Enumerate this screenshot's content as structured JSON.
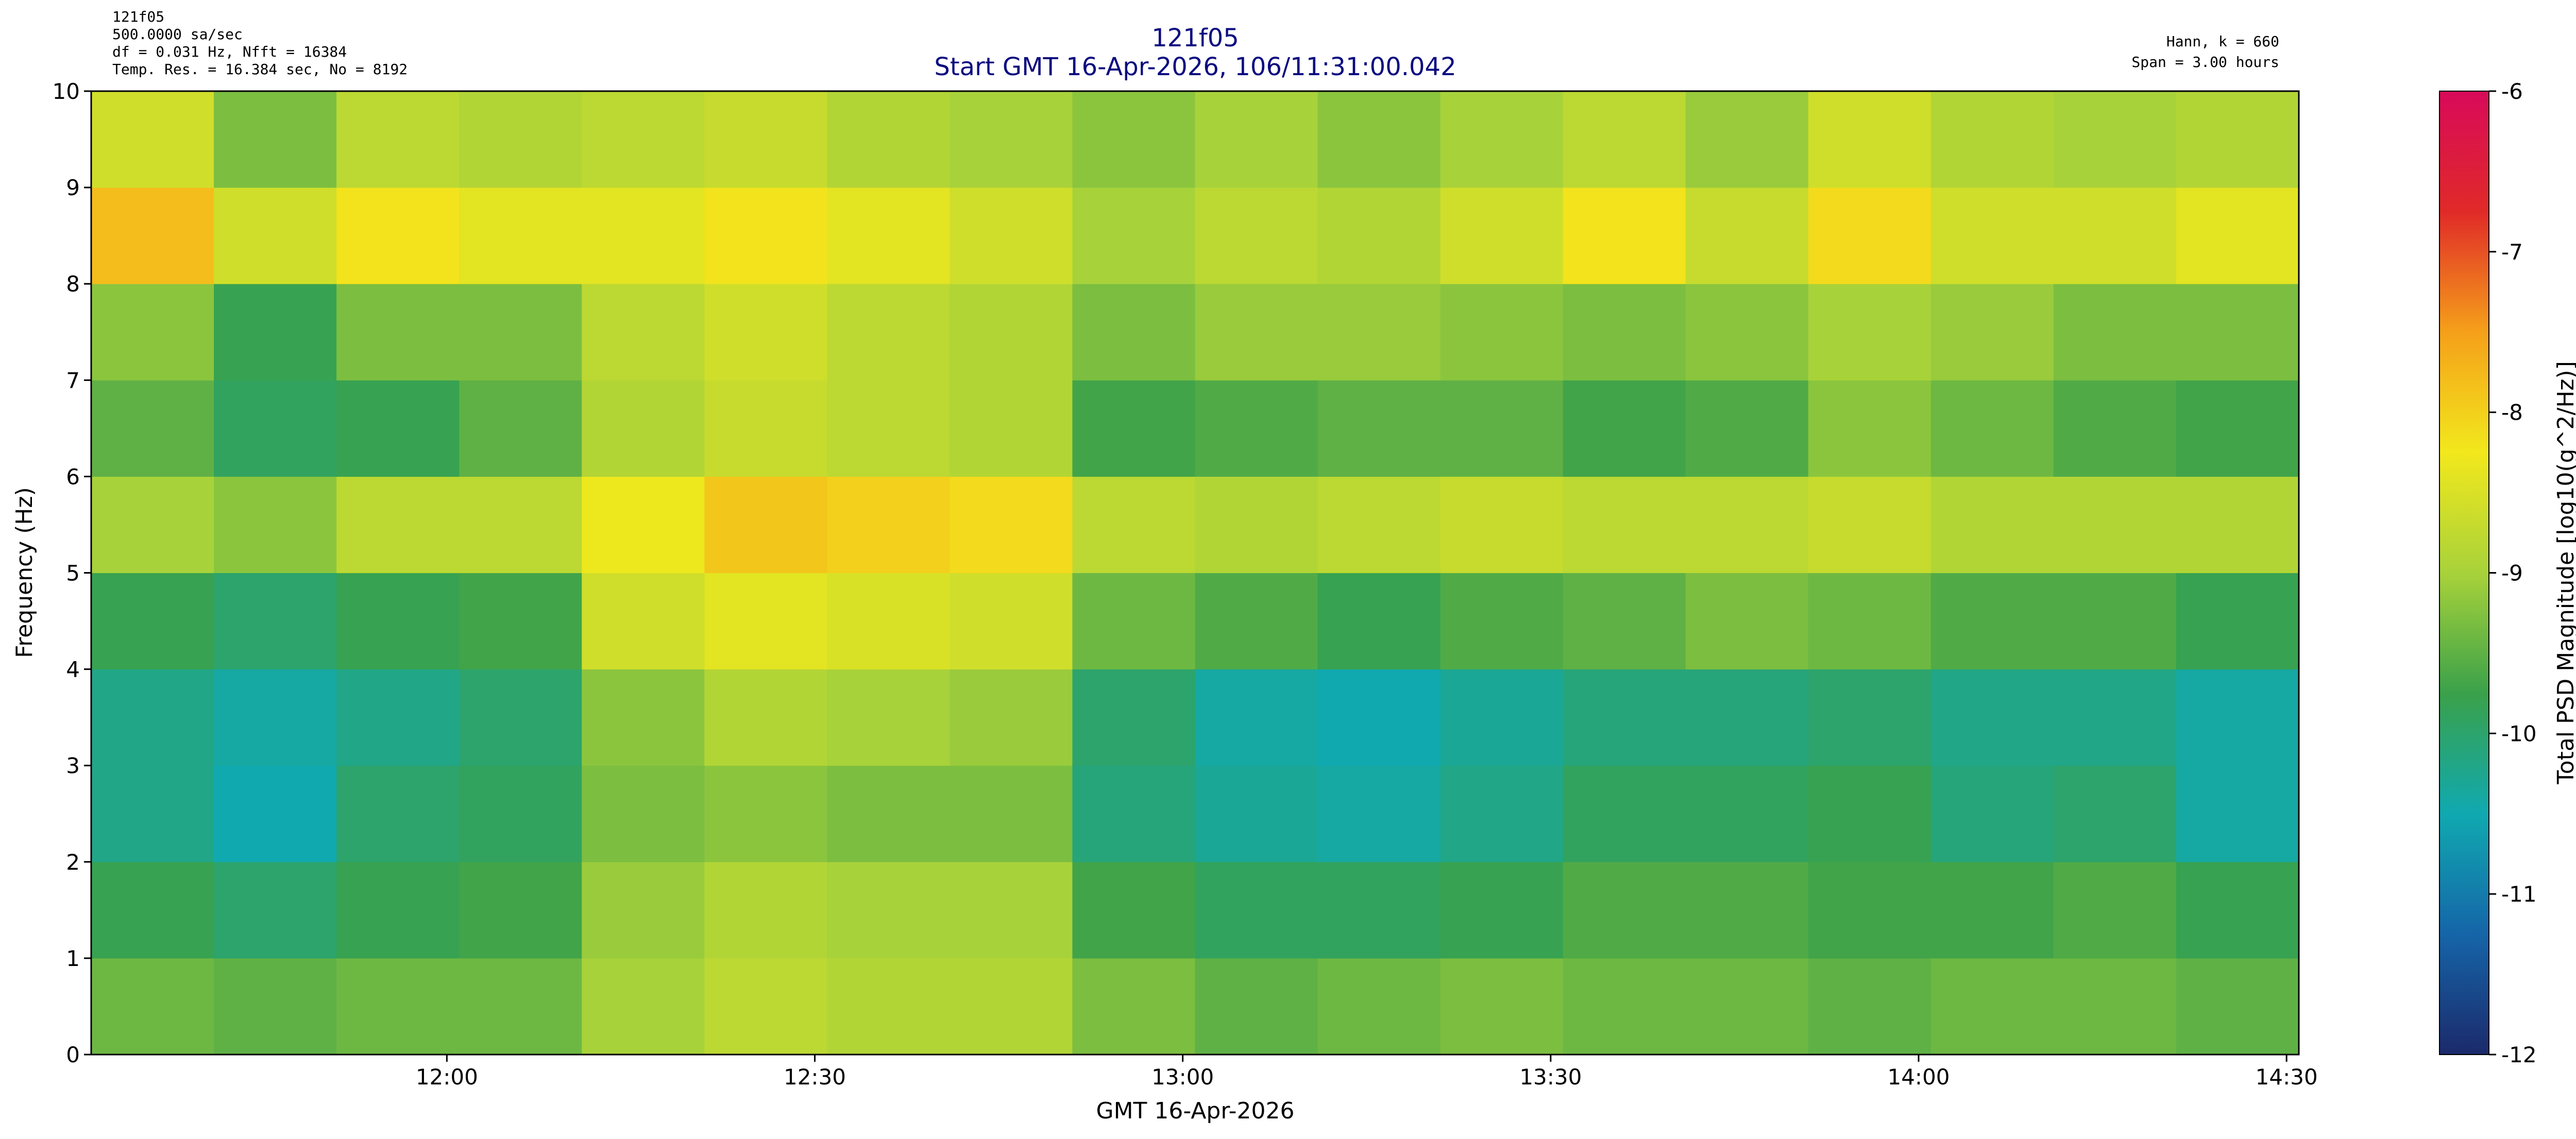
{
  "chart_data": {
    "type": "spectrogram",
    "title": "121f05",
    "subtitle": "Start GMT 16-Apr-2026, 106/11:31:00.042",
    "info_left": [
      "121f05",
      "500.0000 sa/sec",
      "df = 0.031 Hz,  Nfft = 16384",
      "Temp. Res. = 16.384 sec, No = 8192"
    ],
    "info_right": [
      "Hann, k = 660",
      "Span = 3.00 hours"
    ],
    "xlabel": "GMT 16-Apr-2026",
    "ylabel": "Frequency (Hz)",
    "colorbar_label": "Total PSD Magnitude [log10(g^2/Hz)]",
    "xlim": [
      11.51668,
      14.51668
    ],
    "xticks": [
      {
        "value": 12,
        "label": "12:00"
      },
      {
        "value": 12.5,
        "label": "12:30"
      },
      {
        "value": 13,
        "label": "13:00"
      },
      {
        "value": 13.5,
        "label": "13:30"
      },
      {
        "value": 14,
        "label": "14:00"
      },
      {
        "value": 14.5,
        "label": "14:30"
      }
    ],
    "ylim": [
      0,
      10
    ],
    "yticks": [
      0,
      1,
      2,
      3,
      4,
      5,
      6,
      7,
      8,
      9,
      10
    ],
    "x_bins": [
      11.51668,
      11.68335,
      11.85002,
      12.01668,
      12.18335,
      12.35002,
      12.51668,
      12.68335,
      12.85002,
      13.01668,
      13.18335,
      13.35002,
      13.51668,
      13.68335,
      13.85002,
      14.01668,
      14.18335,
      14.35002,
      14.51668
    ],
    "y_bins": [
      0,
      1,
      2,
      3,
      4,
      5,
      6,
      7,
      8,
      9,
      10
    ],
    "values": [
      [
        -9.4,
        -9.5,
        -9.4,
        -9.4,
        -9.0,
        -8.8,
        -8.9,
        -8.9,
        -9.3,
        -9.5,
        -9.4,
        -9.3,
        -9.4,
        -9.4,
        -9.5,
        -9.4,
        -9.4,
        -9.5
      ],
      [
        -9.8,
        -10.0,
        -9.8,
        -9.7,
        -9.1,
        -8.9,
        -9.0,
        -9.0,
        -9.7,
        -9.9,
        -9.9,
        -9.8,
        -9.6,
        -9.6,
        -9.7,
        -9.7,
        -9.6,
        -9.8
      ],
      [
        -10.2,
        -10.5,
        -10.0,
        -9.9,
        -9.3,
        -9.2,
        -9.3,
        -9.3,
        -10.1,
        -10.3,
        -10.4,
        -10.2,
        -9.9,
        -9.9,
        -9.8,
        -10.1,
        -10.0,
        -10.4
      ],
      [
        -10.2,
        -10.4,
        -10.2,
        -10.0,
        -9.2,
        -8.9,
        -9.0,
        -9.1,
        -10.0,
        -10.4,
        -10.5,
        -10.3,
        -10.1,
        -10.1,
        -10.0,
        -10.2,
        -10.2,
        -10.4
      ],
      [
        -9.8,
        -10.0,
        -9.8,
        -9.7,
        -8.6,
        -8.4,
        -8.5,
        -8.6,
        -9.4,
        -9.6,
        -9.8,
        -9.6,
        -9.5,
        -9.3,
        -9.4,
        -9.6,
        -9.6,
        -9.8
      ],
      [
        -9.0,
        -9.2,
        -8.8,
        -8.8,
        -8.3,
        -7.9,
        -8.0,
        -8.1,
        -8.8,
        -8.9,
        -8.8,
        -8.7,
        -8.8,
        -8.8,
        -8.7,
        -8.9,
        -8.9,
        -8.9
      ],
      [
        -9.5,
        -9.9,
        -9.8,
        -9.5,
        -8.9,
        -8.7,
        -8.8,
        -8.9,
        -9.7,
        -9.6,
        -9.5,
        -9.5,
        -9.7,
        -9.6,
        -9.2,
        -9.4,
        -9.6,
        -9.7
      ],
      [
        -9.2,
        -9.8,
        -9.3,
        -9.3,
        -8.8,
        -8.6,
        -8.8,
        -8.9,
        -9.3,
        -9.1,
        -9.1,
        -9.2,
        -9.3,
        -9.2,
        -9.0,
        -9.1,
        -9.3,
        -9.3
      ],
      [
        -7.8,
        -8.6,
        -8.2,
        -8.4,
        -8.4,
        -8.2,
        -8.4,
        -8.6,
        -9.0,
        -8.8,
        -8.9,
        -8.6,
        -8.2,
        -8.7,
        -8.1,
        -8.6,
        -8.6,
        -8.4
      ],
      [
        -8.6,
        -9.3,
        -8.8,
        -8.9,
        -8.8,
        -8.7,
        -8.9,
        -9.0,
        -9.2,
        -9.0,
        -9.2,
        -9.0,
        -8.8,
        -9.1,
        -8.6,
        -8.9,
        -9.0,
        -8.9
      ]
    ],
    "clim": [
      -12,
      -6
    ],
    "cticks": [
      -12,
      -11,
      -10,
      -9,
      -8,
      -7,
      -6
    ],
    "colormap": [
      "#1b2a6b",
      "#1565a8",
      "#10a9b0",
      "#3aa14a",
      "#a8d23a",
      "#f2e81c",
      "#f5a01a",
      "#e02a28",
      "#d80a5a"
    ]
  }
}
